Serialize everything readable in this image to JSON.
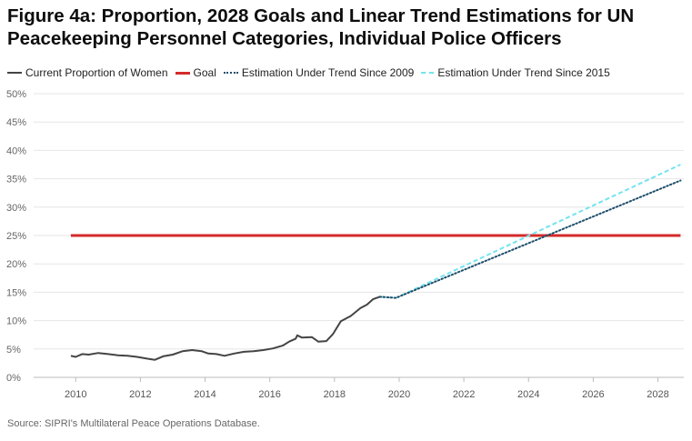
{
  "title": "Figure 4a: Proportion, 2028 Goals and Linear Trend Estimations for UN Peacekeeping Personnel Categories, Individual Police Officers",
  "source": "Source: SIPRI's Multilateral Peace Operations Database.",
  "chart_data": {
    "type": "line",
    "title": "Figure 4a: Proportion, 2028 Goals and Linear Trend Estimations for UN Peacekeeping Personnel Categories, Individual Police Officers",
    "xlabel": "",
    "ylabel": "",
    "xlim": [
      2008.7,
      2028.8
    ],
    "ylim": [
      0,
      50
    ],
    "x_ticks": [
      2010,
      2012,
      2014,
      2016,
      2018,
      2020,
      2022,
      2024,
      2026,
      2028
    ],
    "x_tick_labels": [
      "2010",
      "2012",
      "2014",
      "2016",
      "2018",
      "2020",
      "2022",
      "2024",
      "2026",
      "2028"
    ],
    "y_ticks": [
      0,
      5,
      10,
      15,
      20,
      25,
      30,
      35,
      40,
      45,
      50
    ],
    "y_tick_labels": [
      "0%",
      "5%",
      "10%",
      "15%",
      "20%",
      "25%",
      "30%",
      "35%",
      "40%",
      "45%",
      "50%"
    ],
    "grid": "horizontal",
    "legend_position": "top-left",
    "series": [
      {
        "name": "Current Proportion of Women",
        "color": "#444444",
        "style": "solid",
        "points": [
          [
            2009.85,
            3.8
          ],
          [
            2010.0,
            3.6
          ],
          [
            2010.2,
            4.1
          ],
          [
            2010.4,
            4.0
          ],
          [
            2010.7,
            4.3
          ],
          [
            2011.0,
            4.1
          ],
          [
            2011.3,
            3.9
          ],
          [
            2011.6,
            3.8
          ],
          [
            2011.9,
            3.6
          ],
          [
            2012.2,
            3.3
          ],
          [
            2012.45,
            3.1
          ],
          [
            2012.7,
            3.7
          ],
          [
            2013.0,
            4.0
          ],
          [
            2013.3,
            4.6
          ],
          [
            2013.6,
            4.8
          ],
          [
            2013.9,
            4.6
          ],
          [
            2014.1,
            4.2
          ],
          [
            2014.35,
            4.1
          ],
          [
            2014.6,
            3.8
          ],
          [
            2014.9,
            4.2
          ],
          [
            2015.2,
            4.5
          ],
          [
            2015.5,
            4.6
          ],
          [
            2015.8,
            4.8
          ],
          [
            2016.1,
            5.1
          ],
          [
            2016.4,
            5.6
          ],
          [
            2016.6,
            6.3
          ],
          [
            2016.8,
            6.8
          ],
          [
            2016.85,
            7.4
          ],
          [
            2017.0,
            7.0
          ],
          [
            2017.3,
            7.1
          ],
          [
            2017.5,
            6.3
          ],
          [
            2017.75,
            6.4
          ],
          [
            2017.95,
            7.6
          ],
          [
            2018.2,
            9.9
          ],
          [
            2018.5,
            10.8
          ],
          [
            2018.8,
            12.2
          ],
          [
            2019.0,
            12.8
          ],
          [
            2019.2,
            13.8
          ],
          [
            2019.4,
            14.2
          ]
        ]
      },
      {
        "name": "Goal",
        "color": "#d42a2a",
        "style": "solid",
        "points": [
          [
            2009.85,
            25
          ],
          [
            2028.7,
            25
          ]
        ]
      },
      {
        "name": "Estimation Under Trend Since 2009",
        "color": "#1d4e6b",
        "style": "dotted",
        "points": [
          [
            2019.4,
            14.2
          ],
          [
            2019.9,
            14.0
          ],
          [
            2028.7,
            34.7
          ]
        ]
      },
      {
        "name": "Estimation Under Trend Since 2015",
        "color": "#72e4f0",
        "style": "dashed",
        "points": [
          [
            2019.4,
            14.2
          ],
          [
            2019.9,
            14.0
          ],
          [
            2028.7,
            37.5
          ]
        ]
      }
    ]
  }
}
